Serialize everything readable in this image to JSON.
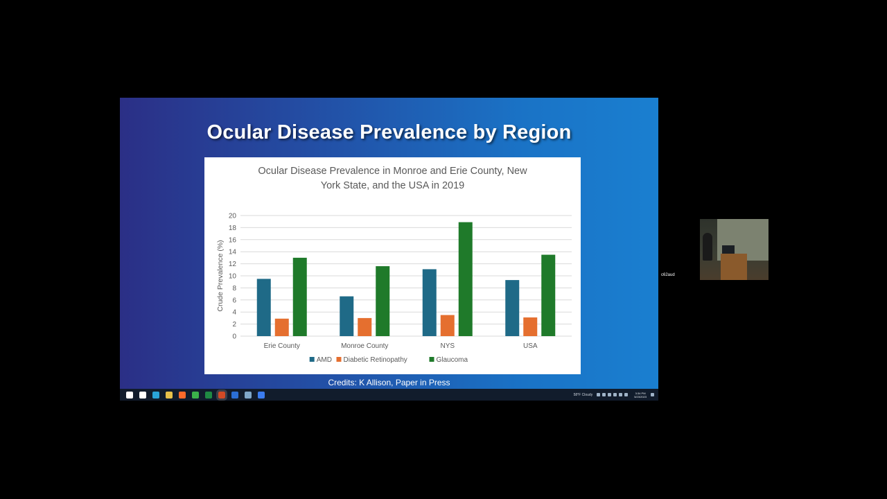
{
  "slide": {
    "title": "Ocular Disease Prevalence by Region",
    "credits": "Credits: K Allison, Paper in Press"
  },
  "chart_data": {
    "type": "bar",
    "title_lines": [
      "Ocular Disease Prevalence in Monroe and Erie County, New",
      "York State, and the USA in 2019"
    ],
    "ylabel": "Crude Prevalence (%)",
    "xlabel": "",
    "ylim": [
      0,
      20
    ],
    "yticks": [
      0,
      2,
      4,
      6,
      8,
      10,
      12,
      14,
      16,
      18,
      20
    ],
    "grid": true,
    "legend_position": "bottom",
    "categories": [
      "Erie County",
      "Monroe County",
      "NYS",
      "USA"
    ],
    "series": [
      {
        "name": "AMD",
        "color": "#1f6a87",
        "values": [
          9.5,
          6.6,
          11.1,
          9.3
        ]
      },
      {
        "name": "Diabetic Retinopathy",
        "color": "#e56f2f",
        "values": [
          2.9,
          3.0,
          3.5,
          3.1
        ]
      },
      {
        "name": "Glaucoma",
        "color": "#1f7a2a",
        "values": [
          13.0,
          11.6,
          18.9,
          13.5
        ]
      }
    ]
  },
  "taskbar": {
    "apps": [
      {
        "icon": "windows-start-icon",
        "color": "#ffffff"
      },
      {
        "icon": "search-icon",
        "color": "#ffffff"
      },
      {
        "icon": "edge-icon",
        "color": "#2aa3d8"
      },
      {
        "icon": "file-explorer-icon",
        "color": "#e8c14a"
      },
      {
        "icon": "firefox-icon",
        "color": "#ff6a2a"
      },
      {
        "icon": "chrome-icon",
        "color": "#3bb24a"
      },
      {
        "icon": "excel-icon",
        "color": "#1f8a43"
      },
      {
        "icon": "powerpoint-icon",
        "color": "#d24a26"
      },
      {
        "icon": "outlook-icon",
        "color": "#2b6fd6"
      },
      {
        "icon": "notepad-icon",
        "color": "#7fa7c9"
      },
      {
        "icon": "zoom-icon",
        "color": "#3b7cf0"
      }
    ],
    "weather": "58°F  Cloudy",
    "clock_time": "3:34 PM",
    "clock_date": "5/23/2023"
  },
  "webcam": {
    "label": "c62aud"
  }
}
